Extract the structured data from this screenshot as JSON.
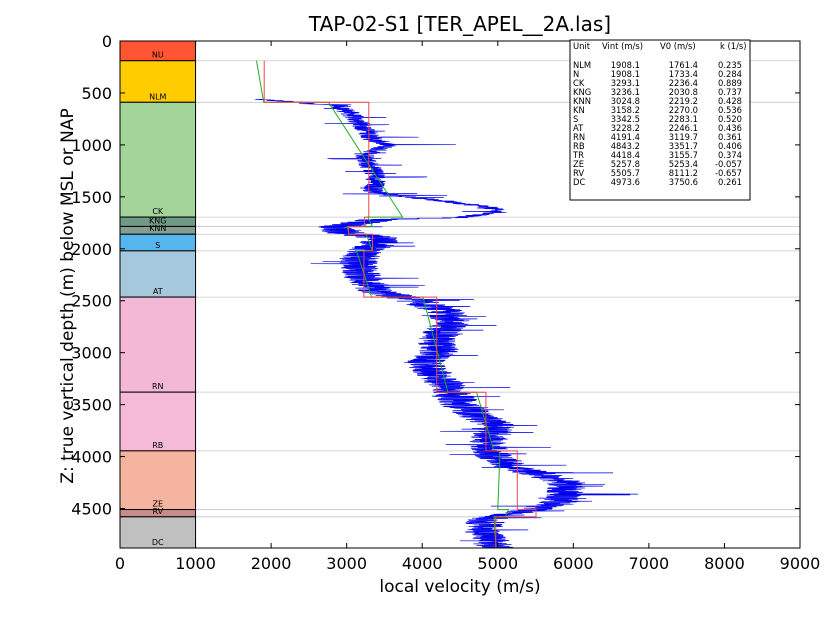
{
  "chart_data": {
    "type": "line",
    "title": "TAP-02-S1 [TER_APEL__2A.las]",
    "xlabel": "local velocity (m/s)",
    "ylabel": "Z: true vertical depth (m) below MSL or NAP",
    "xlim": [
      0,
      9000
    ],
    "ylim": [
      4880,
      0
    ],
    "x_ticks": [
      "0",
      "1000",
      "2000",
      "3000",
      "4000",
      "5000",
      "6000",
      "7000",
      "8000",
      "9000"
    ],
    "y_ticks": [
      "0",
      "500",
      "1000",
      "1500",
      "2000",
      "2500",
      "3000",
      "3500",
      "4000",
      "4500"
    ],
    "unit_column": {
      "x_range": [
        0,
        1000
      ],
      "units": [
        {
          "name": "NU",
          "top": 0,
          "bottom": 190,
          "color": "#ff5533"
        },
        {
          "name": "NLM",
          "top": 190,
          "bottom": 590,
          "color": "#ffcc00"
        },
        {
          "name": "CK",
          "top": 590,
          "bottom": 1695,
          "color": "#a3d49a"
        },
        {
          "name": "KNG",
          "top": 1695,
          "bottom": 1785,
          "color": "#6e9a86"
        },
        {
          "name": "KNN",
          "top": 1785,
          "bottom": 1860,
          "color": "#869e91"
        },
        {
          "name": "S",
          "top": 1860,
          "bottom": 2020,
          "color": "#55b6ee"
        },
        {
          "name": "AT",
          "top": 2020,
          "bottom": 2465,
          "color": "#a6c8dd"
        },
        {
          "name": "RN",
          "top": 2465,
          "bottom": 3380,
          "color": "#f2b8d6"
        },
        {
          "name": "RB",
          "top": 3380,
          "bottom": 3945,
          "color": "#f4bad8"
        },
        {
          "name": "ZE",
          "top": 3945,
          "bottom": 4510,
          "color": "#f4b4a0"
        },
        {
          "name": "RV",
          "top": 4510,
          "bottom": 4580,
          "color": "#c98c8c"
        },
        {
          "name": "DC",
          "top": 4580,
          "bottom": 4880,
          "color": "#c0c0c0"
        }
      ]
    },
    "series": [
      {
        "name": "",
        "color": "#ee4444",
        "style": "interval velocity (step)",
        "points": [
          [
            1908,
            190
          ],
          [
            1908,
            590
          ],
          [
            3293,
            590
          ],
          [
            3293,
            1695
          ],
          [
            3236,
            1695
          ],
          [
            3236,
            1785
          ],
          [
            3025,
            1785
          ],
          [
            3025,
            1860
          ],
          [
            3342,
            1860
          ],
          [
            3342,
            2020
          ],
          [
            3228,
            2020
          ],
          [
            3228,
            2465
          ],
          [
            4191,
            2465
          ],
          [
            4191,
            3380
          ],
          [
            4843,
            3380
          ],
          [
            4843,
            3945
          ],
          [
            5258,
            3945
          ],
          [
            5258,
            4510
          ],
          [
            5506,
            4510
          ],
          [
            5506,
            4580
          ],
          [
            4974,
            4580
          ],
          [
            4974,
            4880
          ]
        ]
      },
      {
        "name": "",
        "color": "#22aa22",
        "style": "V0 + k·Z model",
        "points": [
          [
            1806,
            190
          ],
          [
            1902,
            590
          ],
          [
            2760,
            590
          ],
          [
            3740,
            1695
          ],
          [
            3280,
            1695
          ],
          [
            3340,
            1785
          ],
          [
            3010,
            1785
          ],
          [
            3030,
            1860
          ],
          [
            3260,
            1860
          ],
          [
            3340,
            2020
          ],
          [
            3130,
            2020
          ],
          [
            3330,
            2465
          ],
          [
            4010,
            2465
          ],
          [
            4340,
            3380
          ],
          [
            4720,
            3380
          ],
          [
            4950,
            3945
          ],
          [
            5030,
            3945
          ],
          [
            5000,
            4510
          ],
          [
            5140,
            4510
          ],
          [
            5100,
            4580
          ],
          [
            4950,
            4580
          ],
          [
            4975,
            4880
          ]
        ]
      },
      {
        "name": "",
        "color": "#0000ee",
        "style": "sonic log (noisy)",
        "trend": [
          [
            1800,
            560
          ],
          [
            2900,
            620
          ],
          [
            3050,
            700
          ],
          [
            3250,
            850
          ],
          [
            3350,
            950
          ],
          [
            3550,
            1000
          ],
          [
            3250,
            1100
          ],
          [
            3300,
            1200
          ],
          [
            3400,
            1300
          ],
          [
            3350,
            1450
          ],
          [
            3800,
            1500
          ],
          [
            4400,
            1550
          ],
          [
            4900,
            1600
          ],
          [
            5000,
            1650
          ],
          [
            4500,
            1700
          ],
          [
            3400,
            1720
          ],
          [
            2800,
            1800
          ],
          [
            3000,
            1850
          ],
          [
            3500,
            1900
          ],
          [
            3300,
            2000
          ],
          [
            3150,
            2100
          ],
          [
            3200,
            2250
          ],
          [
            3350,
            2400
          ],
          [
            3900,
            2500
          ],
          [
            4300,
            2600
          ],
          [
            4400,
            2700
          ],
          [
            4200,
            2850
          ],
          [
            4200,
            3000
          ],
          [
            4000,
            3100
          ],
          [
            4150,
            3200
          ],
          [
            4300,
            3300
          ],
          [
            4400,
            3400
          ],
          [
            4500,
            3500
          ],
          [
            4700,
            3600
          ],
          [
            5000,
            3700
          ],
          [
            4900,
            3800
          ],
          [
            4850,
            3900
          ],
          [
            4950,
            4000
          ],
          [
            5200,
            4100
          ],
          [
            5700,
            4200
          ],
          [
            5900,
            4250
          ],
          [
            5900,
            4350
          ],
          [
            5800,
            4450
          ],
          [
            5200,
            4550
          ],
          [
            4850,
            4600
          ],
          [
            4800,
            4700
          ],
          [
            4900,
            4800
          ],
          [
            4950,
            4880
          ]
        ]
      }
    ],
    "legend_table": {
      "header": [
        "Unit",
        "Vint (m/s)",
        "V0 (m/s)",
        "k (1/s)"
      ],
      "rows": [
        [
          "NLM",
          "1908.1",
          "1761.4",
          "0.235"
        ],
        [
          "N",
          "1908.1",
          "1733.4",
          "0.284"
        ],
        [
          "CK",
          "3293.1",
          "2236.4",
          "0.889"
        ],
        [
          "KNG",
          "3236.1",
          "2030.8",
          "0.737"
        ],
        [
          "KNN",
          "3024.8",
          "2219.2",
          "0.428"
        ],
        [
          "KN",
          "3158.2",
          "2270.0",
          "0.536"
        ],
        [
          "S",
          "3342.5",
          "2283.1",
          "0.520"
        ],
        [
          "AT",
          "3228.2",
          "2246.1",
          "0.436"
        ],
        [
          "RN",
          "4191.4",
          "3119.7",
          "0.361"
        ],
        [
          "RB",
          "4843.2",
          "3351.7",
          "0.406"
        ],
        [
          "TR",
          "4418.4",
          "3155.7",
          "0.374"
        ],
        [
          "ZE",
          "5257.8",
          "5253.4",
          "-0.057"
        ],
        [
          "RV",
          "5505.7",
          "8111.2",
          "-0.657"
        ],
        [
          "DC",
          "4973.6",
          "3750.6",
          "0.261"
        ]
      ]
    },
    "boundaries": [
      190,
      590,
      1695,
      1785,
      1860,
      2020,
      2465,
      3380,
      3945,
      4510,
      4580
    ]
  }
}
